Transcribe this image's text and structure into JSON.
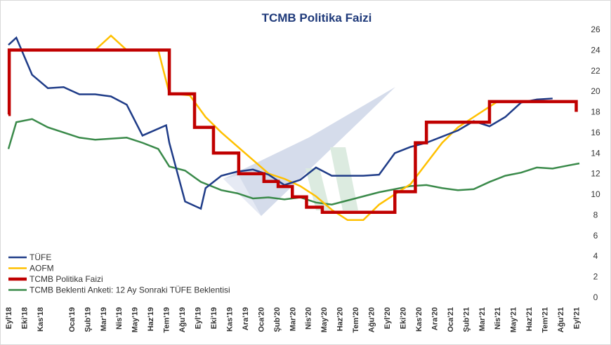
{
  "chart_data": {
    "type": "line",
    "title": "TCMB Politika Faizi",
    "ylim": [
      0,
      26
    ],
    "yticks": [
      0,
      2,
      4,
      6,
      8,
      10,
      12,
      14,
      16,
      18,
      20,
      22,
      24,
      26
    ],
    "y_axis_side": "right",
    "grid": false,
    "legend_position": "bottom-left",
    "x_labels": [
      "Eyl'18",
      "Eki'18",
      "Kas'18",
      "Oca'19",
      "Şub'19",
      "Mar'19",
      "Nis'19",
      "May'19",
      "Haz'19",
      "Tem'19",
      "Ağu'19",
      "Eyl'19",
      "Eki'19",
      "Kas'19",
      "Ara'19",
      "Oca'20",
      "Şub'20",
      "Mar'20",
      "Nis'20",
      "May'20",
      "Haz'20",
      "Tem'20",
      "Ağu'20",
      "Eyl'20",
      "Eki'20",
      "Kas'20",
      "Ara'20",
      "Oca'21",
      "Şub'21",
      "Mar'21",
      "Nis'21",
      "May'21",
      "Haz'21",
      "Tem'21",
      "Ağu'21",
      "Eyl'21"
    ],
    "month_index": [
      0,
      1,
      2,
      4,
      5,
      6,
      7,
      8,
      9,
      10,
      11,
      12,
      13,
      14,
      15,
      16,
      17,
      18,
      19,
      20,
      21,
      22,
      23,
      24,
      25,
      26,
      27,
      28,
      29,
      30,
      31,
      32,
      33,
      34,
      35,
      36
    ],
    "x_range": [
      0,
      36.2
    ],
    "series": [
      {
        "name": "TÜFE",
        "color": "#1f3c88",
        "step": false,
        "x": [
          0,
          0.5,
          1.5,
          2.5,
          3.5,
          4.5,
          5.5,
          6.5,
          7.5,
          8.5,
          10,
          10.2,
          11.2,
          12.2,
          12.5,
          13.5,
          14.5,
          15.5,
          16.5,
          17.5,
          18.5,
          19.5,
          20.5,
          21.5,
          22.5,
          23.5,
          24.5,
          25.5,
          26.5,
          27.5,
          28.5,
          29.5,
          30.5,
          31.5,
          32.5,
          33.5,
          34.5
        ],
        "y": [
          24.5,
          25.2,
          21.6,
          20.3,
          20.4,
          19.7,
          19.7,
          19.5,
          18.7,
          15.7,
          16.7,
          15.0,
          9.3,
          8.6,
          10.6,
          11.8,
          12.2,
          12.4,
          11.9,
          10.9,
          11.4,
          12.6,
          11.8,
          11.8,
          11.8,
          11.9,
          14.0,
          14.6,
          15.0,
          15.6,
          16.2,
          17.1,
          16.6,
          17.5,
          18.9,
          19.2,
          19.3
        ]
      },
      {
        "name": "AOFM",
        "color": "#ffc000",
        "step": false,
        "x": [
          0,
          2,
          4,
          5.5,
          6.5,
          7.5,
          8.5,
          9.5,
          10.2,
          11.5,
          12.5,
          13.5,
          15,
          16.5,
          17.5,
          18.5,
          19.5,
          20.5,
          21.5,
          22.5,
          23.5,
          24.5,
          25.5,
          26.5,
          27.5,
          28.5,
          29.5,
          30.5,
          31,
          32,
          33,
          34,
          35,
          36
        ],
        "y": [
          24.0,
          24.0,
          24.0,
          24.0,
          25.4,
          24.0,
          24.0,
          24.0,
          19.8,
          19.6,
          17.5,
          16.0,
          14.0,
          12.0,
          11.5,
          10.8,
          9.8,
          8.5,
          7.5,
          7.5,
          9.0,
          10.0,
          11.0,
          13.0,
          15.0,
          16.5,
          17.5,
          18.5,
          19.0,
          19.0,
          19.0,
          19.0,
          19.0,
          19.0
        ]
      },
      {
        "name": "TCMB Politika Faizi",
        "color": "#c00000",
        "step": true,
        "x": [
          0,
          0.05,
          10.2,
          11.8,
          13.0,
          14.6,
          16.2,
          17.1,
          18.0,
          18.9,
          19.9,
          20.8,
          22.5,
          23.5,
          24.5,
          25.8,
          26.5,
          27.3,
          28.5,
          29.3,
          30.5,
          31.2,
          32.5,
          33.5,
          34.5,
          35.8,
          36.0
        ],
        "y": [
          17.75,
          24.0,
          19.75,
          16.5,
          14.0,
          12.0,
          11.25,
          10.75,
          9.75,
          8.75,
          8.25,
          8.25,
          8.25,
          8.25,
          10.25,
          15.0,
          17.0,
          17.0,
          17.0,
          17.0,
          19.0,
          19.0,
          19.0,
          19.0,
          19.0,
          19.0,
          18.0
        ]
      },
      {
        "name": "TCMB Beklenti Anketi: 12 Ay Sonraki TÜFE Beklentisi",
        "color": "#3a8a4a",
        "step": false,
        "x": [
          0,
          0.5,
          1.5,
          2.5,
          3.5,
          4.5,
          5.5,
          6.5,
          7.5,
          8.5,
          9.5,
          10.2,
          11.2,
          12.2,
          13.5,
          14.5,
          15.5,
          16.5,
          17.5,
          18.5,
          19.5,
          20.5,
          21.5,
          22.5,
          23.5,
          24.5,
          25.5,
          26.5,
          27.5,
          28.5,
          29.5,
          30.5,
          31.5,
          32.5,
          33.5,
          34.5,
          35.5,
          36.2
        ],
        "y": [
          14.4,
          17.0,
          17.3,
          16.5,
          16.0,
          15.5,
          15.3,
          15.4,
          15.5,
          15.0,
          14.4,
          12.7,
          12.3,
          11.2,
          10.4,
          10.1,
          9.6,
          9.7,
          9.5,
          9.7,
          9.2,
          9.0,
          9.4,
          9.8,
          10.2,
          10.5,
          10.8,
          10.9,
          10.6,
          10.4,
          10.5,
          11.2,
          11.8,
          12.1,
          12.6,
          12.5,
          12.8,
          13.0
        ]
      }
    ]
  }
}
